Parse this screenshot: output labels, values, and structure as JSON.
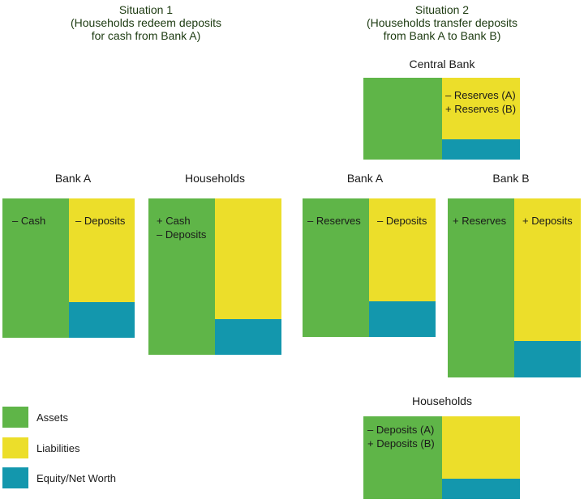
{
  "situation1": {
    "title_lines": [
      "Situation 1",
      "(Households redeem deposits",
      "for cash from Bank A)"
    ],
    "bank_a": {
      "label": "Bank A",
      "assets": [
        "– Cash"
      ],
      "liabilities": [
        "– Deposits"
      ]
    },
    "households": {
      "label": "Households",
      "assets": [
        "+ Cash",
        "– Deposits"
      ],
      "liabilities": []
    }
  },
  "situation2": {
    "title_lines": [
      "Situation 2",
      "(Households transfer deposits",
      "from Bank A to Bank B)"
    ],
    "central_bank": {
      "label": "Central Bank",
      "assets": [],
      "liabilities": [
        "– Reserves (A)",
        "+ Reserves (B)"
      ]
    },
    "bank_a": {
      "label": "Bank A",
      "assets": [
        "– Reserves"
      ],
      "liabilities": [
        "– Deposits"
      ]
    },
    "bank_b": {
      "label": "Bank B",
      "assets": [
        "+ Reserves"
      ],
      "liabilities": [
        "+ Deposits"
      ]
    },
    "households": {
      "label": "Households",
      "assets": [
        "– Deposits (A)",
        "+ Deposits (B)"
      ],
      "liabilities": []
    }
  },
  "legend": [
    {
      "label": "Assets",
      "color": "#5fb548"
    },
    {
      "label": "Liabilities",
      "color": "#ecde2a"
    },
    {
      "label": "Equity/Net Worth",
      "color": "#1397ad"
    }
  ],
  "colors": {
    "assets": "#5fb548",
    "liabilities": "#ecde2a",
    "equity": "#1397ad"
  }
}
